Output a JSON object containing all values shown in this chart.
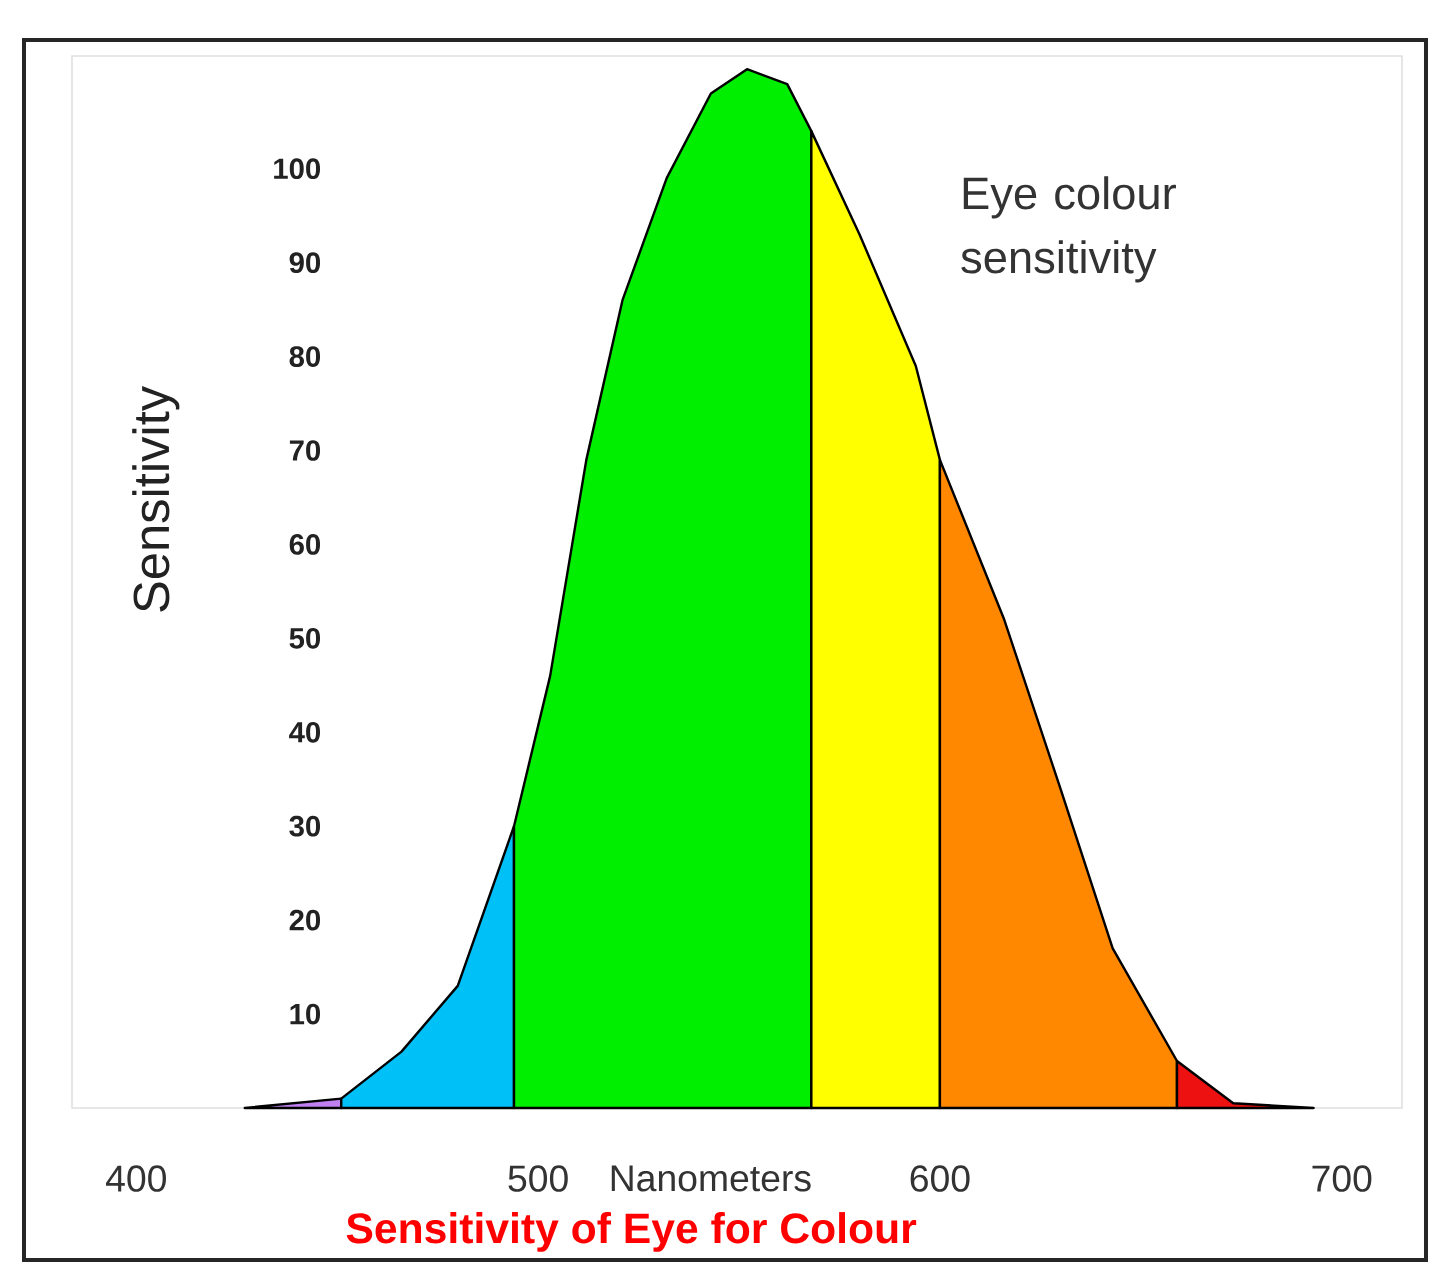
{
  "chart_data": {
    "type": "area",
    "title": "Eye colour sensitivity",
    "xlabel": "Nanometers",
    "ylabel": "Sensitivity",
    "annotations": [
      "Sensitivity of Eye for Colour"
    ],
    "xlim": [
      384,
      715
    ],
    "ylim": [
      0,
      112
    ],
    "xticks": [
      400,
      500,
      600,
      700
    ],
    "yticks": [
      10,
      20,
      30,
      40,
      50,
      60,
      70,
      80,
      90,
      100
    ],
    "series": [
      {
        "color": "#c080f0",
        "x": [
          427,
          451
        ],
        "values": [
          0,
          1
        ]
      },
      {
        "color": "#00c0f8",
        "x": [
          451,
          466,
          480,
          494
        ],
        "values": [
          1,
          6,
          13,
          30
        ]
      },
      {
        "color": "#00ee00",
        "x": [
          494,
          503,
          512,
          521,
          532,
          543,
          552,
          562,
          568
        ],
        "values": [
          30,
          46,
          69,
          86,
          99,
          108,
          110.6,
          109,
          104
        ]
      },
      {
        "color": "#ffff00",
        "x": [
          568,
          580,
          594,
          600
        ],
        "values": [
          104,
          93,
          79,
          69
        ]
      },
      {
        "color": "#ff8800",
        "x": [
          600,
          616,
          630,
          643,
          659
        ],
        "values": [
          69,
          52,
          34,
          17,
          5
        ]
      },
      {
        "color": "#ee1111",
        "x": [
          659,
          673,
          693
        ],
        "values": [
          5,
          0.5,
          0
        ]
      }
    ]
  }
}
